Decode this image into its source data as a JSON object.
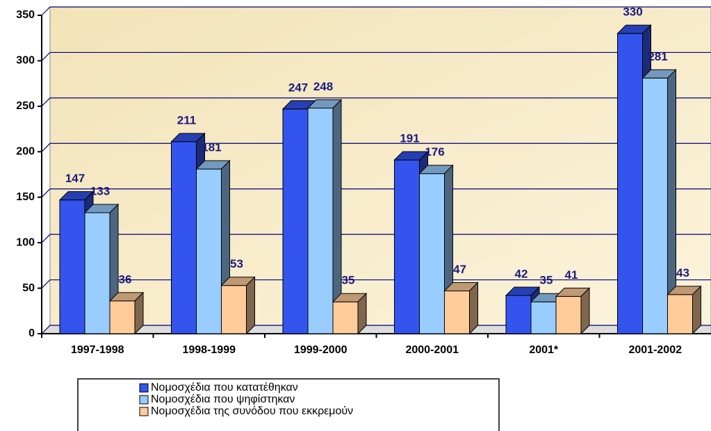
{
  "chart_data": {
    "type": "bar3d",
    "categories": [
      "1997-1998",
      "1998-1999",
      "1999-2000",
      "2000-2001",
      "2001*",
      "2001-2002"
    ],
    "series": [
      {
        "name": "Νομοσχέδια που κατατέθηκαν",
        "color": "#3355ee",
        "values": [
          147,
          211,
          247,
          191,
          42,
          330
        ]
      },
      {
        "name": "Νομοσχέδια που ψηφίστηκαν",
        "color": "#99ccff",
        "values": [
          133,
          181,
          248,
          176,
          35,
          281
        ]
      },
      {
        "name": "Νομοσχέδια της συνόδου που εκκρεμούν",
        "color": "#ffcc99",
        "values": [
          36,
          53,
          35,
          47,
          41,
          43
        ]
      }
    ],
    "ylim": [
      0,
      350
    ],
    "yticks": [
      0,
      50,
      100,
      150,
      200,
      250,
      300,
      350
    ],
    "grid": true
  }
}
